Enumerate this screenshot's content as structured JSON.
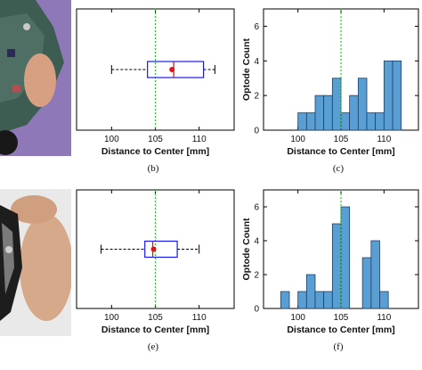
{
  "photos": [
    {
      "name": "optode-array-photo-top"
    },
    {
      "name": "optode-array-photo-bottom"
    }
  ],
  "chart_data": [
    {
      "panel": "(b)",
      "type": "boxplot",
      "xlabel": "Distance to Center [mm]",
      "ylabel": "",
      "xlim": [
        96,
        114
      ],
      "xticks": [
        100,
        105,
        110
      ],
      "whisker_low": 100,
      "q1": 104.1,
      "median": 107.1,
      "q3": 110.5,
      "whisker_high": 111.8,
      "mean": 106.9,
      "reference_line": 105,
      "colors": {
        "box": "#1a1ae6",
        "median": "#e0151b",
        "mean": "#e0151b",
        "reference": "#22cc22",
        "whisker": "#000000"
      }
    },
    {
      "panel": "(c)",
      "type": "bar",
      "xlabel": "Distance to Center [mm]",
      "ylabel": "Optode Count",
      "xlim": [
        96,
        114
      ],
      "xticks": [
        100,
        105,
        110
      ],
      "ylim": [
        0,
        7
      ],
      "yticks": [
        0,
        2,
        4,
        6
      ],
      "bin_edges": [
        100,
        101,
        102,
        103,
        104,
        105,
        106,
        107,
        108,
        109,
        110,
        111,
        112
      ],
      "values": [
        1,
        1,
        2,
        2,
        3,
        1,
        2,
        3,
        1,
        1,
        4,
        4
      ],
      "reference_line": 105,
      "colors": {
        "bar": "#5a9fd4",
        "edge": "#1c3f66",
        "reference": "#22cc22"
      }
    },
    {
      "panel": "(e)",
      "type": "boxplot",
      "xlabel": "Distance to Center [mm]",
      "ylabel": "",
      "xlim": [
        96,
        114
      ],
      "xticks": [
        100,
        105,
        110
      ],
      "whisker_low": 98.8,
      "q1": 103.8,
      "median": 104.7,
      "q3": 107.5,
      "whisker_high": 110,
      "mean": 104.8,
      "reference_line": 105,
      "colors": {
        "box": "#1a1ae6",
        "median": "#e0151b",
        "mean": "#e0151b",
        "reference": "#22cc22",
        "whisker": "#000000"
      }
    },
    {
      "panel": "(f)",
      "type": "bar",
      "xlabel": "Distance to Center [mm]",
      "ylabel": "Optode Count",
      "xlim": [
        96,
        114
      ],
      "xticks": [
        100,
        105,
        110
      ],
      "ylim": [
        0,
        7
      ],
      "yticks": [
        0,
        2,
        4,
        6
      ],
      "bin_edges": [
        98,
        99,
        100,
        101,
        102,
        103,
        104,
        105,
        106,
        107,
        108,
        109,
        110
      ],
      "values": [
        1,
        0,
        1,
        2,
        1,
        1,
        5,
        6,
        0,
        0,
        3,
        4,
        1
      ],
      "bin_starts": [
        98,
        99,
        100,
        101,
        102,
        103,
        104,
        105,
        106,
        107,
        107.5,
        108.5,
        109.5
      ],
      "reference_line": 105,
      "colors": {
        "bar": "#5a9fd4",
        "edge": "#1c3f66",
        "reference": "#22cc22"
      }
    }
  ]
}
